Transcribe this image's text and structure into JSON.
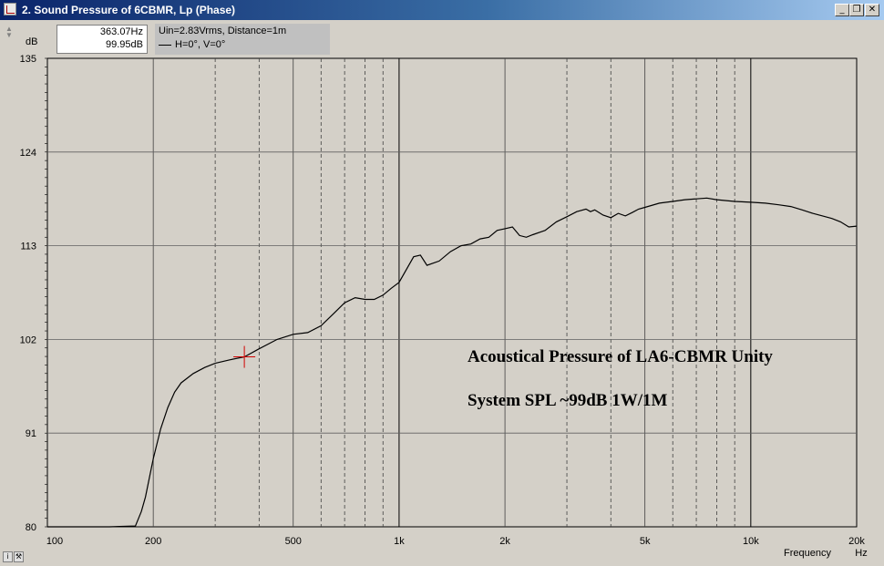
{
  "window": {
    "title": "2. Sound Pressure of 6CBMR, Lp (Phase)",
    "buttons": {
      "minimize": "_",
      "restore": "❐",
      "close": "✕"
    }
  },
  "readout": {
    "frequency": "363.07Hz",
    "level": "99.95dB"
  },
  "legend": {
    "line1": "Uin=2.83Vrms, Distance=1m",
    "line2": "H=0°, V=0°"
  },
  "chart_data": {
    "type": "line",
    "title": "",
    "xlabel": "Frequency",
    "xunit": "Hz",
    "ylabel": "dB",
    "xscale": "log",
    "xlim": [
      100,
      20000
    ],
    "ylim": [
      80,
      135
    ],
    "yticks": [
      80,
      91,
      102,
      113,
      124,
      135
    ],
    "xticks": [
      {
        "value": 100,
        "label": "100"
      },
      {
        "value": 200,
        "label": "200"
      },
      {
        "value": 500,
        "label": "500"
      },
      {
        "value": 1000,
        "label": "1k"
      },
      {
        "value": 2000,
        "label": "2k"
      },
      {
        "value": 5000,
        "label": "5k"
      },
      {
        "value": 10000,
        "label": "10k"
      },
      {
        "value": 20000,
        "label": "20k"
      }
    ],
    "grid": true,
    "cursor": {
      "x": 363.07,
      "y": 99.95
    },
    "annotations": [
      "Acoustical Pressure of LA6-CBMR Unity",
      "System SPL ~99dB 1W/1M"
    ],
    "series": [
      {
        "color": "#000000",
        "x": [
          100,
          150,
          178,
          185,
          190,
          200,
          210,
          220,
          230,
          240,
          260,
          280,
          300,
          330,
          363,
          400,
          450,
          500,
          550,
          600,
          650,
          700,
          750,
          800,
          850,
          900,
          950,
          1000,
          1100,
          1150,
          1200,
          1300,
          1400,
          1500,
          1600,
          1700,
          1800,
          1900,
          2000,
          2100,
          2200,
          2300,
          2400,
          2600,
          2800,
          3000,
          3200,
          3400,
          3500,
          3600,
          3800,
          4000,
          4200,
          4400,
          4600,
          4800,
          5000,
          5500,
          6000,
          6500,
          7000,
          7500,
          8000,
          9000,
          10000,
          11000,
          12000,
          13000,
          14000,
          15000,
          16000,
          17000,
          18000,
          19000,
          20000
        ],
        "y": [
          80.0,
          80.0,
          80.1,
          81.8,
          83.5,
          88.0,
          91.5,
          94.0,
          95.8,
          96.9,
          98.0,
          98.7,
          99.2,
          99.6,
          99.95,
          100.9,
          102.0,
          102.6,
          102.8,
          103.6,
          105.0,
          106.3,
          106.9,
          106.7,
          106.7,
          107.2,
          108.0,
          108.7,
          111.7,
          111.9,
          110.7,
          111.2,
          112.3,
          113.0,
          113.2,
          113.8,
          114.0,
          114.8,
          115.0,
          115.2,
          114.2,
          114.0,
          114.3,
          114.8,
          115.8,
          116.4,
          117.0,
          117.3,
          117.0,
          117.2,
          116.6,
          116.3,
          116.8,
          116.5,
          116.9,
          117.3,
          117.5,
          118.0,
          118.2,
          118.4,
          118.5,
          118.6,
          118.4,
          118.2,
          118.1,
          118.0,
          117.8,
          117.6,
          117.2,
          116.8,
          116.5,
          116.2,
          115.8,
          115.2,
          115.3
        ]
      }
    ]
  }
}
